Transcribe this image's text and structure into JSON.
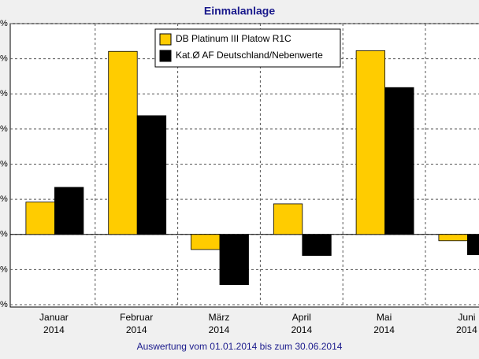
{
  "chart_data": {
    "type": "bar",
    "title": "Einmalanlage",
    "subtitle": "Auswertung vom 01.01.2014 bis zum 30.06.2014",
    "categories": [
      "Januar 2014",
      "Februar 2014",
      "März 2014",
      "April 2014",
      "Mai 2014",
      "Juni 2014"
    ],
    "series": [
      {
        "name": "DB Platinum III Platow R1C",
        "color": "#ffcc00",
        "values": [
          0.92,
          5.21,
          -0.43,
          0.87,
          5.23,
          -0.18
        ]
      },
      {
        "name": "Kat.Ø AF Deutschland/Nebenwerte",
        "color": "#000000",
        "values": [
          1.34,
          3.38,
          -1.43,
          -0.6,
          4.18,
          -0.58
        ]
      }
    ],
    "ylim": [
      -2,
      6
    ],
    "yticks": [
      {
        "value": -2,
        "label": "%"
      },
      {
        "value": -1,
        "label": "%"
      },
      {
        "value": 0,
        "label": "%"
      },
      {
        "value": 1,
        "label": "%"
      },
      {
        "value": 2,
        "label": "%"
      },
      {
        "value": 3,
        "label": "%"
      },
      {
        "value": 4,
        "label": "%"
      },
      {
        "value": 5,
        "label": "%"
      },
      {
        "value": 6,
        "label": "%"
      }
    ],
    "grid": true,
    "legend": "top"
  }
}
